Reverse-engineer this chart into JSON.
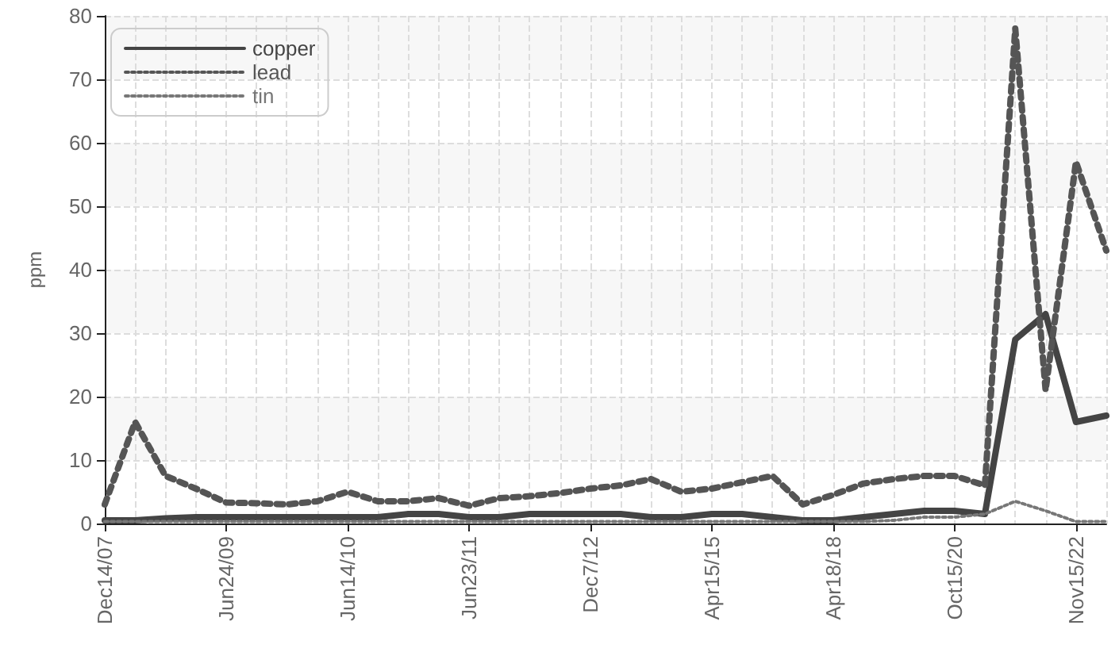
{
  "chart_data": {
    "type": "line",
    "ylabel": "ppm",
    "categories": [
      "Dec14/07",
      null,
      null,
      null,
      "Jun24/09",
      null,
      null,
      null,
      "Jun14/10",
      null,
      null,
      null,
      "Jun23/11",
      null,
      null,
      null,
      "Dec7/12",
      null,
      null,
      null,
      "Apr15/15",
      null,
      null,
      null,
      "Apr18/18",
      null,
      null,
      null,
      "Oct15/20",
      null,
      null,
      null,
      "Nov15/22",
      null
    ],
    "series": [
      {
        "name": "copper",
        "color": "#444444",
        "line_style": "solid",
        "values": [
          0.5,
          0.5,
          0.8,
          1,
          1,
          1,
          1,
          1,
          1,
          1,
          1.5,
          1.5,
          1,
          1,
          1.5,
          1.5,
          1.5,
          1.5,
          1,
          1,
          1.5,
          1.5,
          1,
          0.5,
          0.5,
          1,
          1.5,
          2,
          2,
          1.5,
          29,
          33,
          16,
          17
        ]
      },
      {
        "name": "lead",
        "color": "#555555",
        "line_style": "dotted",
        "values": [
          3,
          16,
          7.5,
          5.5,
          3.3,
          3.2,
          3,
          3.5,
          5,
          3.5,
          3.5,
          4,
          2.8,
          4,
          4.3,
          4.8,
          5.5,
          6,
          7,
          5,
          5.5,
          6.5,
          7.5,
          3,
          4.5,
          6.3,
          7,
          7.5,
          7.5,
          6,
          78,
          21,
          57,
          43
        ]
      },
      {
        "name": "tin",
        "color": "#777777",
        "line_style": "dotted",
        "values": [
          0.3,
          0.3,
          0.3,
          0.3,
          0.3,
          0.3,
          0.3,
          0.3,
          0.3,
          0.3,
          0.3,
          0.3,
          0.3,
          0.3,
          0.3,
          0.3,
          0.3,
          0.3,
          0.3,
          0.3,
          0.3,
          0.3,
          0.3,
          0.3,
          0.3,
          0.3,
          0.5,
          1,
          1,
          1.5,
          3.5,
          2,
          0.3,
          0.3
        ]
      }
    ],
    "ylim": [
      0,
      80
    ],
    "yticks": [
      0,
      10,
      20,
      30,
      40,
      50,
      60,
      70,
      80
    ],
    "grid": true,
    "legend": "top left",
    "marker": "none"
  }
}
